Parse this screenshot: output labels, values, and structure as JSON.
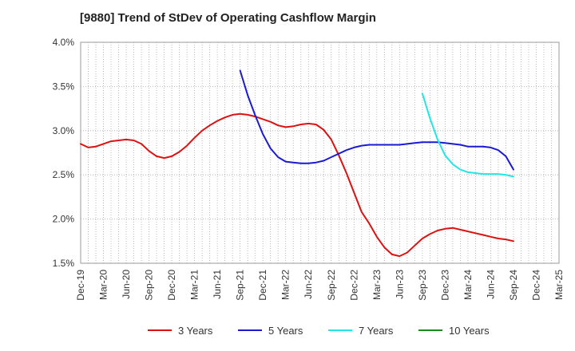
{
  "chart_data": {
    "type": "line",
    "title": "[9880]  Trend of StDev of Operating Cashflow Margin",
    "xlabel": "",
    "ylabel": "",
    "x_ticks": [
      "Dec-19",
      "Mar-20",
      "Jun-20",
      "Sep-20",
      "Dec-20",
      "Mar-21",
      "Jun-21",
      "Sep-21",
      "Dec-21",
      "Mar-22",
      "Jun-22",
      "Sep-22",
      "Dec-22",
      "Mar-23",
      "Jun-23",
      "Sep-23",
      "Dec-23",
      "Mar-24",
      "Jun-24",
      "Sep-24",
      "Dec-24",
      "Mar-25"
    ],
    "y_ticks": [
      "1.5%",
      "2.0%",
      "2.5%",
      "3.0%",
      "3.5%",
      "4.0%"
    ],
    "ylim": [
      1.5,
      4.0
    ],
    "y_unit": "%",
    "grid": true,
    "legend_position": "bottom",
    "series": [
      {
        "name": "3 Years",
        "color": "#dd1111",
        "x": [
          "Dec-19",
          "Jan-20",
          "Feb-20",
          "Mar-20",
          "Apr-20",
          "May-20",
          "Jun-20",
          "Jul-20",
          "Aug-20",
          "Sep-20",
          "Oct-20",
          "Nov-20",
          "Dec-20",
          "Jan-21",
          "Feb-21",
          "Mar-21",
          "Apr-21",
          "May-21",
          "Jun-21",
          "Jul-21",
          "Aug-21",
          "Sep-21",
          "Oct-21",
          "Nov-21",
          "Dec-21",
          "Jan-22",
          "Feb-22",
          "Mar-22",
          "Apr-22",
          "May-22",
          "Jun-22",
          "Jul-22",
          "Aug-22",
          "Sep-22",
          "Oct-22",
          "Nov-22",
          "Dec-22",
          "Jan-23",
          "Feb-23",
          "Mar-23",
          "Apr-23",
          "May-23",
          "Jun-23",
          "Jul-23",
          "Aug-23",
          "Sep-23",
          "Oct-23",
          "Nov-23",
          "Dec-23",
          "Jan-24",
          "Feb-24",
          "Mar-24",
          "Apr-24",
          "May-24",
          "Jun-24",
          "Jul-24",
          "Aug-24",
          "Sep-24"
        ],
        "values": [
          2.85,
          2.81,
          2.82,
          2.85,
          2.88,
          2.89,
          2.9,
          2.89,
          2.85,
          2.77,
          2.71,
          2.69,
          2.71,
          2.76,
          2.83,
          2.92,
          3.0,
          3.06,
          3.11,
          3.15,
          3.18,
          3.19,
          3.18,
          3.16,
          3.13,
          3.1,
          3.06,
          3.04,
          3.05,
          3.07,
          3.08,
          3.07,
          3.01,
          2.9,
          2.72,
          2.52,
          2.3,
          2.08,
          1.95,
          1.8,
          1.68,
          1.6,
          1.58,
          1.62,
          1.7,
          1.78,
          1.83,
          1.87,
          1.89,
          1.9,
          1.88,
          1.86,
          1.84,
          1.82,
          1.8,
          1.78,
          1.77,
          1.75
        ]
      },
      {
        "name": "5 Years",
        "color": "#1a1ad4",
        "x": [
          "Sep-21",
          "Oct-21",
          "Nov-21",
          "Dec-21",
          "Jan-22",
          "Feb-22",
          "Mar-22",
          "Apr-22",
          "May-22",
          "Jun-22",
          "Jul-22",
          "Aug-22",
          "Sep-22",
          "Oct-22",
          "Nov-22",
          "Dec-22",
          "Jan-23",
          "Feb-23",
          "Mar-23",
          "Apr-23",
          "May-23",
          "Jun-23",
          "Jul-23",
          "Aug-23",
          "Sep-23",
          "Oct-23",
          "Nov-23",
          "Dec-23",
          "Jan-24",
          "Feb-24",
          "Mar-24",
          "Apr-24",
          "May-24",
          "Jun-24",
          "Jul-24",
          "Aug-24",
          "Sep-24"
        ],
        "values": [
          3.68,
          3.4,
          3.17,
          2.96,
          2.8,
          2.7,
          2.65,
          2.64,
          2.63,
          2.63,
          2.64,
          2.66,
          2.7,
          2.74,
          2.78,
          2.81,
          2.83,
          2.84,
          2.84,
          2.84,
          2.84,
          2.84,
          2.85,
          2.86,
          2.87,
          2.87,
          2.87,
          2.86,
          2.85,
          2.84,
          2.82,
          2.82,
          2.82,
          2.81,
          2.78,
          2.71,
          2.56
        ]
      },
      {
        "name": "7 Years",
        "color": "#22e6e6",
        "x": [
          "Sep-23",
          "Oct-23",
          "Nov-23",
          "Dec-23",
          "Jan-24",
          "Feb-24",
          "Mar-24",
          "Apr-24",
          "May-24",
          "Jun-24",
          "Jul-24",
          "Aug-24",
          "Sep-24"
        ],
        "values": [
          3.42,
          3.14,
          2.9,
          2.72,
          2.62,
          2.56,
          2.53,
          2.52,
          2.51,
          2.51,
          2.51,
          2.5,
          2.48
        ]
      },
      {
        "name": "10 Years",
        "color": "#1a8a1a",
        "x": [],
        "values": []
      }
    ]
  }
}
